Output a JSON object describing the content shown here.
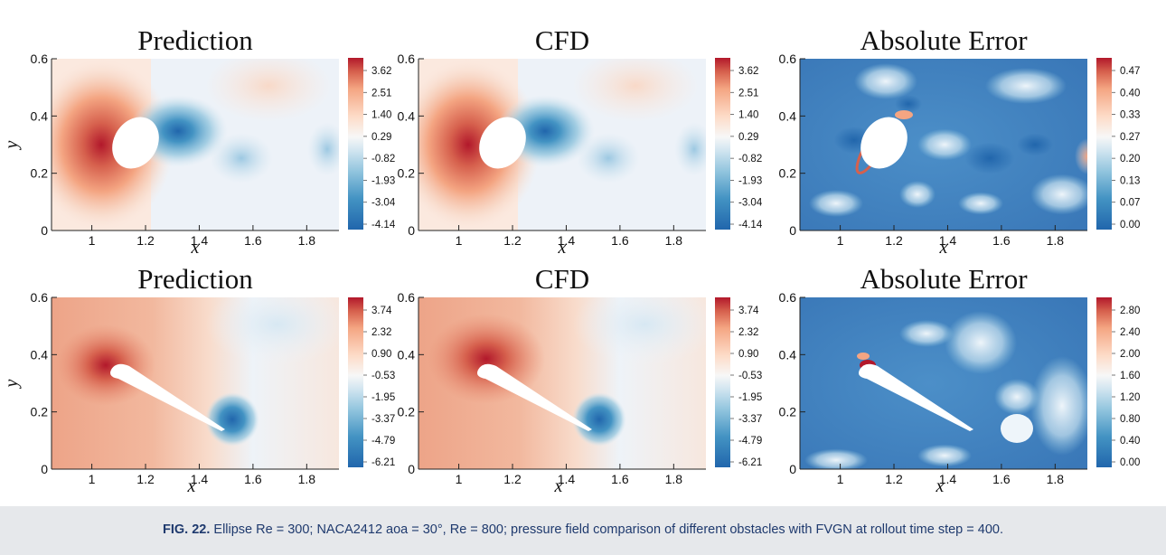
{
  "figure": {
    "caption_label": "FIG. 22.",
    "caption_text": "Ellipse Re = 300; NACA2412 aoa = 30°, Re = 800; pressure field comparison of different obstacles with FVGN at rollout time step = 400.",
    "rows": [
      {
        "obstacle": "ellipse",
        "x_ticks": [
          "1",
          "1.2",
          "1.4",
          "1.6",
          "1.8"
        ],
        "y_ticks": [
          "0",
          "0.2",
          "0.4",
          "0.6"
        ],
        "x_label": "x",
        "y_label": "y",
        "panels": [
          {
            "title": "Prediction",
            "colorbar": [
              "3.62",
              "2.51",
              "1.40",
              "0.29",
              "-0.82",
              "-1.93",
              "-3.04",
              "-4.14"
            ]
          },
          {
            "title": "CFD",
            "colorbar": [
              "3.62",
              "2.51",
              "1.40",
              "0.29",
              "-0.82",
              "-1.93",
              "-3.04",
              "-4.14"
            ]
          },
          {
            "title": "Absolute Error",
            "colorbar": [
              "0.47",
              "0.40",
              "0.33",
              "0.27",
              "0.20",
              "0.13",
              "0.07",
              "0.00"
            ]
          }
        ]
      },
      {
        "obstacle": "naca2412",
        "x_ticks": [
          "1",
          "1.2",
          "1.4",
          "1.6",
          "1.8"
        ],
        "y_ticks": [
          "0",
          "0.2",
          "0.4",
          "0.6"
        ],
        "x_label": "x",
        "y_label": "y",
        "panels": [
          {
            "title": "Prediction",
            "colorbar": [
              "3.74",
              "2.32",
              "0.90",
              "-0.53",
              "-1.95",
              "-3.37",
              "-4.79",
              "-6.21"
            ]
          },
          {
            "title": "CFD",
            "colorbar": [
              "3.74",
              "2.32",
              "0.90",
              "-0.53",
              "-1.95",
              "-3.37",
              "-4.79",
              "-6.21"
            ]
          },
          {
            "title": "Absolute Error",
            "colorbar": [
              "2.80",
              "2.40",
              "2.00",
              "1.60",
              "1.20",
              "0.80",
              "0.40",
              "0.00"
            ]
          }
        ]
      }
    ]
  }
}
